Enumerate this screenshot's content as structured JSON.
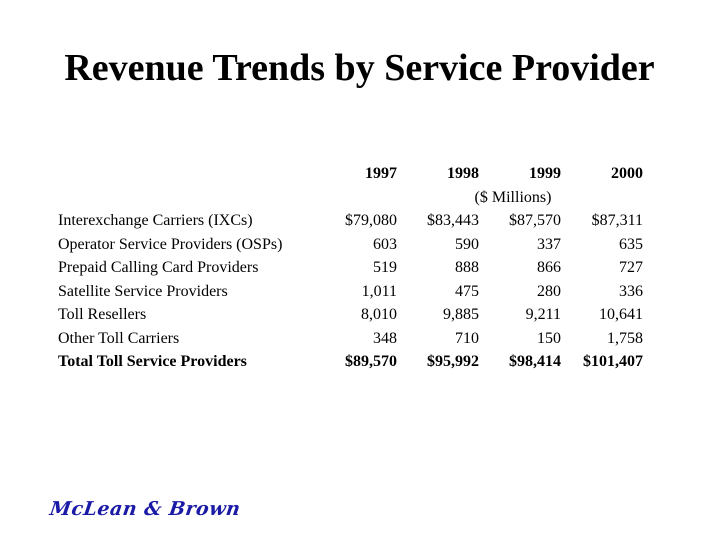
{
  "title": "Revenue Trends by Service Provider",
  "table": {
    "columns": [
      "1997",
      "1998",
      "1999",
      "2000"
    ],
    "units": "($ Millions)",
    "rows": [
      {
        "label": "Interexchange Carriers (IXCs)",
        "values": [
          "$79,080",
          "$83,443",
          "$87,570",
          "$87,311"
        ]
      },
      {
        "label": "Operator Service Providers (OSPs)",
        "values": [
          "603",
          "590",
          "337",
          "635"
        ]
      },
      {
        "label": "Prepaid Calling Card Providers",
        "values": [
          "519",
          "888",
          "866",
          "727"
        ]
      },
      {
        "label": "Satellite Service Providers",
        "values": [
          "1,011",
          "475",
          "280",
          "336"
        ]
      },
      {
        "label": "Toll Resellers",
        "values": [
          "8,010",
          "9,885",
          "9,211",
          "10,641"
        ]
      },
      {
        "label": "Other Toll Carriers",
        "values": [
          "348",
          "710",
          "150",
          "1,758"
        ]
      }
    ],
    "total": {
      "label": "Total Toll Service Providers",
      "values": [
        "$89,570",
        "$95,992",
        "$98,414",
        "$101,407"
      ]
    }
  },
  "logo": {
    "text": "McLean & Brown",
    "color": "#1a1aa6"
  }
}
